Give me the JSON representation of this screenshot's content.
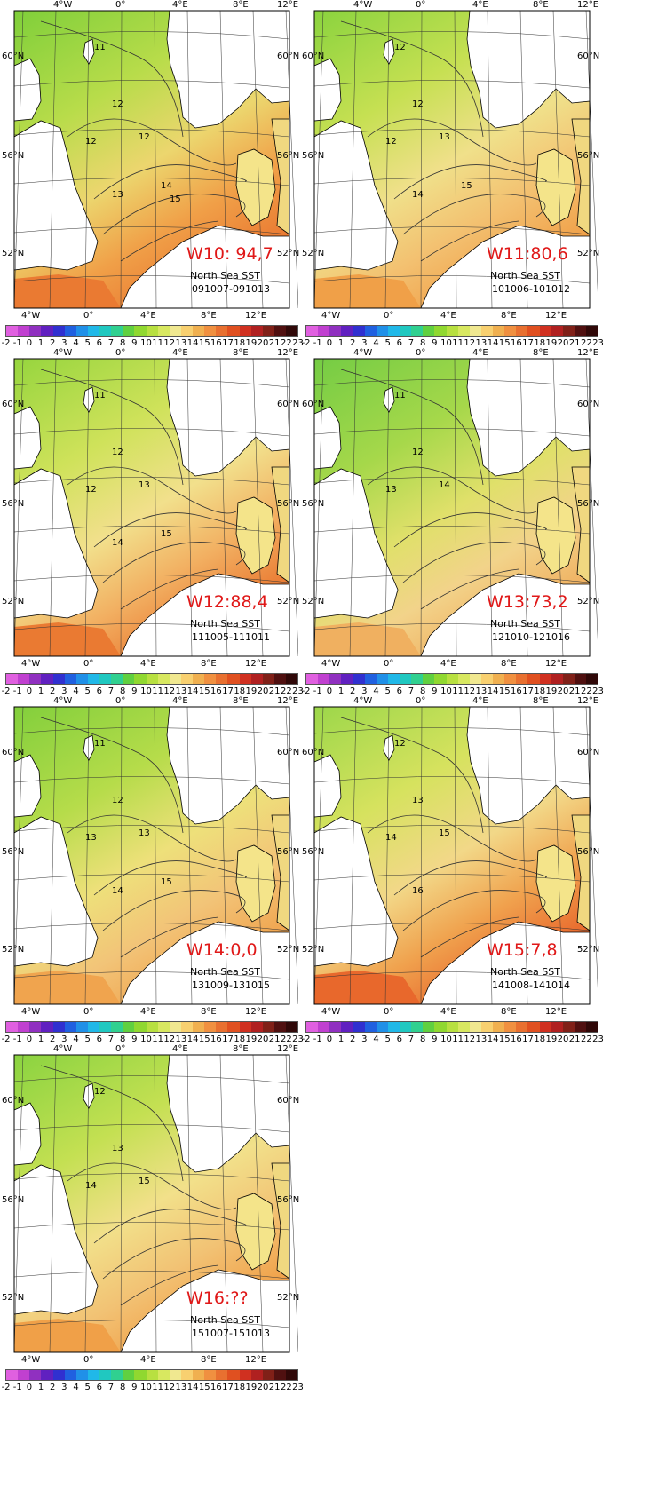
{
  "lon_labels": [
    "4°W",
    "0°",
    "4°E",
    "8°E",
    "12°E"
  ],
  "lat_labels": [
    "60°N",
    "56°N",
    "52°N"
  ],
  "map_subtitle": "North Sea SST",
  "colorbar": {
    "ticks": [
      "-2",
      "-1",
      "0",
      "1",
      "2",
      "3",
      "4",
      "5",
      "6",
      "7",
      "8",
      "9",
      "10",
      "11",
      "12",
      "13",
      "14",
      "15",
      "16",
      "17",
      "18",
      "19",
      "20",
      "21",
      "22",
      "23"
    ],
    "colors": [
      "#e060e0",
      "#c040d0",
      "#9030c0",
      "#6020c0",
      "#3030d0",
      "#2060e0",
      "#2090e8",
      "#20b8e8",
      "#20c8c0",
      "#30d090",
      "#60d040",
      "#90d830",
      "#b8e040",
      "#d8e860",
      "#f0e890",
      "#f8d070",
      "#f0b050",
      "#f09040",
      "#e87030",
      "#e05020",
      "#d03020",
      "#b02020",
      "#802018",
      "#501010",
      "#300808"
    ]
  },
  "panels": [
    {
      "id": "w10",
      "week_label": "W10: 94,7",
      "date_range": "091007-091013",
      "contours": [
        "11",
        "12",
        "12",
        "12",
        "13",
        "14",
        "15"
      ]
    },
    {
      "id": "w11",
      "week_label": "W11:80,6",
      "date_range": "101006-101012",
      "contours": [
        "12",
        "12",
        "12",
        "13",
        "14",
        "15"
      ]
    },
    {
      "id": "w12",
      "week_label": "W12:88,4",
      "date_range": "111005-111011",
      "contours": [
        "11",
        "12",
        "12",
        "13",
        "14",
        "15"
      ]
    },
    {
      "id": "w13",
      "week_label": "W13:73,2",
      "date_range": "121010-121016",
      "contours": [
        "11",
        "12",
        "13",
        "14"
      ]
    },
    {
      "id": "w14",
      "week_label": "W14:0,0",
      "date_range": "131009-131015",
      "contours": [
        "11",
        "12",
        "13",
        "13",
        "14",
        "15"
      ]
    },
    {
      "id": "w15",
      "week_label": "W15:7,8",
      "date_range": "141008-141014",
      "contours": [
        "12",
        "13",
        "14",
        "15",
        "16"
      ]
    },
    {
      "id": "w16",
      "week_label": "W16:??",
      "date_range": "151007-151013",
      "contours": [
        "12",
        "13",
        "14",
        "15"
      ]
    }
  ]
}
